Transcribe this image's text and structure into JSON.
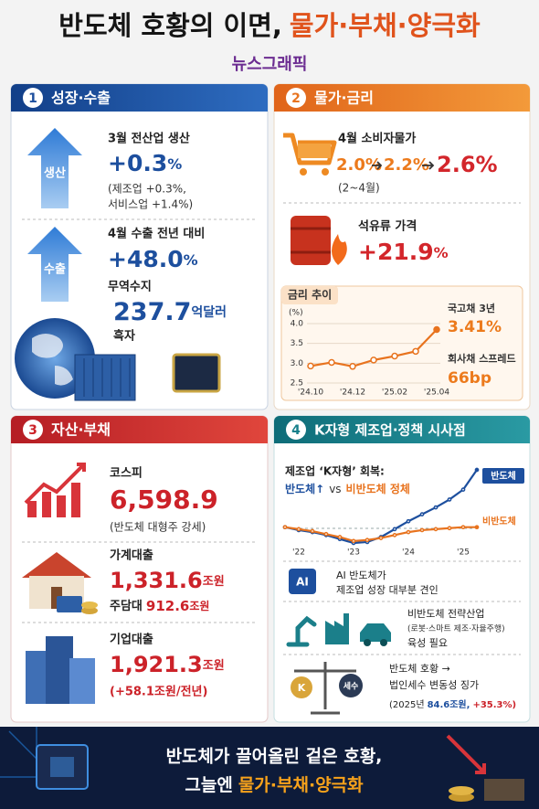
{
  "header": {
    "title": "반도체 호황의 이면,",
    "title_accent": "물가·부채·양극화",
    "subtitle": "뉴스그래픽"
  },
  "growth": {
    "number": "1",
    "title": "성장·수출",
    "production": {
      "badge": "생산",
      "label": "3월 전산업 생산",
      "value": "+0.3",
      "unit": "%",
      "note_1": "(제조업 +0.3%,",
      "note_2": "서비스업 +1.4%)"
    },
    "export": {
      "badge": "수출",
      "label": "4월 수출 전년 대비",
      "value": "+48.0",
      "unit": "%",
      "trade_label": "무역수지",
      "trade_value": "237.7",
      "trade_unit": "억달러",
      "trade_note": "흑자"
    }
  },
  "prices": {
    "number": "2",
    "title": "물가·금리",
    "cpi": {
      "label": "4월 소비자물가",
      "values": [
        "2.0%",
        "2.2%",
        "2.6%"
      ],
      "period": "(2~4월)"
    },
    "oil": {
      "label": "석유류 가격",
      "value": "+21.9",
      "unit": "%"
    }
  },
  "debt": {
    "number": "3",
    "title": "자산·부채",
    "kospi": {
      "label": "코스피",
      "value": "6,598.9",
      "note": "(반도체 대형주 강세)"
    },
    "household": {
      "label": "가계대출",
      "value": "1,331.6",
      "unit": "조원",
      "mortgage_label": "주담대",
      "mortgage_value": "912.6",
      "mortgage_unit": "조원"
    },
    "corporate": {
      "label": "기업대출",
      "value": "1,921.3",
      "unit": "조원",
      "note": "(+58.1조원/전년)"
    }
  },
  "policy": {
    "number": "4",
    "title": "K자형 제조업·정책 시사점",
    "ai": {
      "icon": "AI",
      "lines": [
        "AI 반도체가",
        "제조업 성장 대부분 견인"
      ]
    },
    "strategic": {
      "lines": [
        "비반도체 전략산업",
        "(로봇·스마트 제조·자율주행)",
        "육성 필요"
      ]
    },
    "tax": {
      "scale_left": "K",
      "scale_right": "세수",
      "lines": [
        "반도체 호황 →",
        "법인세수 변동성 징가"
      ],
      "detail": "(2025년",
      "amount": "84.6조원,",
      "change": "+35.3%)"
    }
  },
  "chart_data": [
    {
      "type": "line",
      "title": "금리 추이",
      "y_unit": "(%)",
      "categories": [
        "'24.10",
        null,
        "'24.12",
        null,
        "'25.02",
        null,
        "'25.04"
      ],
      "values": [
        2.93,
        3.02,
        2.92,
        3.08,
        3.18,
        3.3,
        3.85
      ],
      "color": "#e8731e",
      "ylim": [
        2.5,
        4.0
      ],
      "yticks": [
        2.5,
        {
          "value": 3,
          "label": "3.0"
        },
        3.5,
        {
          "value": 4,
          "label": "4.0"
        }
      ],
      "grid": true,
      "annotations": [
        {
          "label": "국고채 3년",
          "value": "3.41%"
        },
        {
          "label": "회사채 스프레드",
          "value": "66bp"
        }
      ]
    },
    {
      "type": "line",
      "title": "제조업 ‘K자형’ 회복:",
      "subtitle_parts": [
        "반도체↑",
        "vs",
        "비반도체 정체"
      ],
      "categories": [
        null,
        "'22",
        null,
        null,
        null,
        "'23",
        null,
        null,
        null,
        "'24",
        null,
        null,
        null,
        "'25",
        null
      ],
      "series": [
        {
          "name": "반도체",
          "color": "#1d4f9e",
          "values": [
            30,
            27,
            25,
            22,
            18,
            14,
            15,
            20,
            28,
            36,
            43,
            50,
            58,
            68,
            88
          ]
        },
        {
          "name": "비반도체",
          "color": "#e8731e",
          "values": [
            30,
            28,
            26,
            23,
            20,
            16,
            17,
            19,
            22,
            25,
            27,
            28,
            29,
            30,
            30
          ]
        }
      ]
    }
  ],
  "footer": {
    "line_1": "반도체가 끌어올린 겉은 호황,",
    "line_2": "그늘엔",
    "line_2_accent": "물가·부채·양극화"
  }
}
